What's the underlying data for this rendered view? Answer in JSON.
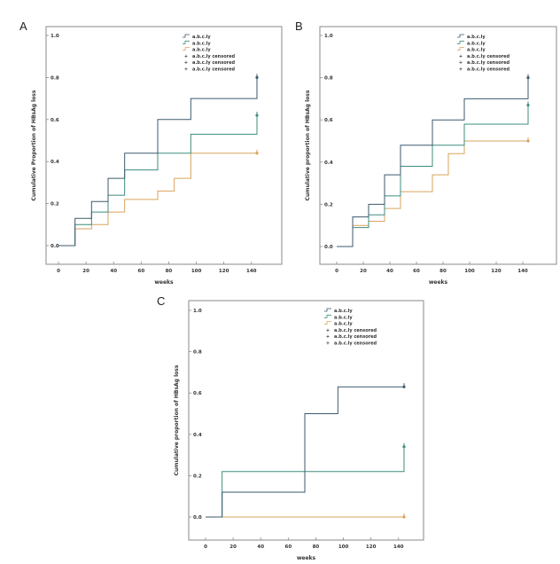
{
  "panel_letters": [
    "A",
    "B",
    "C"
  ],
  "colors": {
    "series1": "#3c5a6e",
    "series2": "#3e8d7d",
    "series3": "#d9a35c",
    "frame": "#8a8a8a"
  },
  "chart_data": [
    {
      "type": "line",
      "panel": "A",
      "title": "",
      "xlabel": "weeks",
      "ylabel": "Cumulative Proportion of HBsAg loss",
      "xlim": [
        0,
        156
      ],
      "ylim": [
        0,
        1.0
      ],
      "xticks": [
        "0",
        "20",
        "40",
        "60",
        "80",
        "100",
        "120",
        "140"
      ],
      "yticks": [
        "0.0",
        "0.2",
        "0.4",
        "0.6",
        "0.8",
        "1.0"
      ],
      "legend": [
        "a.b.c.ly",
        "a.b.c.ly",
        "a.b.c.ly",
        "a.b.c.ly censored",
        "a.b.c.ly censored",
        "a.b.c.ly censored"
      ],
      "legend_position": "top-right",
      "series": [
        {
          "x": [
            0,
            12,
            24,
            36,
            48,
            72,
            96,
            144
          ],
          "y": [
            0,
            0.13,
            0.21,
            0.32,
            0.44,
            0.6,
            0.7,
            0.8
          ],
          "censor_x": 144,
          "censor_y": 0.8
        },
        {
          "x": [
            0,
            12,
            24,
            36,
            48,
            72,
            96,
            144
          ],
          "y": [
            0,
            0.1,
            0.16,
            0.24,
            0.36,
            0.44,
            0.53,
            0.62
          ],
          "censor_x": 144,
          "censor_y": 0.62
        },
        {
          "x": [
            0,
            12,
            24,
            36,
            48,
            72,
            84,
            96,
            144
          ],
          "y": [
            0,
            0.08,
            0.1,
            0.16,
            0.22,
            0.26,
            0.32,
            0.44,
            0.44
          ],
          "censor_x": 144,
          "censor_y": 0.44
        }
      ]
    },
    {
      "type": "line",
      "panel": "B",
      "title": "",
      "xlabel": "weeks",
      "ylabel": "Cumulative proportion of HBsAg loss",
      "xlim": [
        0,
        156
      ],
      "ylim": [
        0,
        1.0
      ],
      "xticks": [
        "0",
        "20",
        "40",
        "60",
        "80",
        "100",
        "120",
        "140"
      ],
      "yticks": [
        "0.0",
        "0.2",
        "0.4",
        "0.6",
        "0.8",
        "1.0"
      ],
      "legend": [
        "a.b.c.ly",
        "a.b.c.ly",
        "a.b.c.ly",
        "a.b.c.ly censored",
        "a.b.c.ly censored",
        "a.b.c.ly censored"
      ],
      "legend_position": "top-right",
      "series": [
        {
          "x": [
            0,
            12,
            24,
            36,
            48,
            72,
            96,
            144
          ],
          "y": [
            0,
            0.14,
            0.2,
            0.34,
            0.48,
            0.6,
            0.7,
            0.8
          ],
          "censor_x": 144,
          "censor_y": 0.8
        },
        {
          "x": [
            0,
            12,
            24,
            36,
            48,
            72,
            96,
            144
          ],
          "y": [
            0,
            0.09,
            0.15,
            0.24,
            0.38,
            0.48,
            0.58,
            0.67
          ],
          "censor_x": 144,
          "censor_y": 0.67
        },
        {
          "x": [
            0,
            12,
            24,
            36,
            48,
            72,
            84,
            96,
            144
          ],
          "y": [
            0,
            0.1,
            0.12,
            0.18,
            0.26,
            0.34,
            0.44,
            0.5,
            0.5
          ],
          "censor_x": 144,
          "censor_y": 0.5
        }
      ]
    },
    {
      "type": "line",
      "panel": "C",
      "title": "",
      "xlabel": "weeks",
      "ylabel": "Cumulative proportion of HBsAg loss",
      "xlim": [
        0,
        156
      ],
      "ylim": [
        0,
        1.0
      ],
      "xticks": [
        "0",
        "20",
        "40",
        "60",
        "80",
        "100",
        "120",
        "140"
      ],
      "yticks": [
        "0.0",
        "0.2",
        "0.4",
        "0.6",
        "0.8",
        "1.0"
      ],
      "legend": [
        "a.b.c.ly",
        "a.b.c.ly",
        "a.b.c.ly",
        "a.b.c.ly censored",
        "a.b.c.ly censored",
        "a.b.c.ly censored"
      ],
      "legend_position": "top-right",
      "series": [
        {
          "x": [
            0,
            12,
            72,
            96,
            144
          ],
          "y": [
            0,
            0.12,
            0.5,
            0.63,
            0.63
          ],
          "censor_x": 144,
          "censor_y": 0.63
        },
        {
          "x": [
            0,
            12,
            144
          ],
          "y": [
            0,
            0.22,
            0.34
          ],
          "censor_x": 144,
          "censor_y": 0.34
        },
        {
          "x": [
            0,
            144
          ],
          "y": [
            0,
            0
          ],
          "censor_x": 144,
          "censor_y": 0
        }
      ]
    }
  ]
}
